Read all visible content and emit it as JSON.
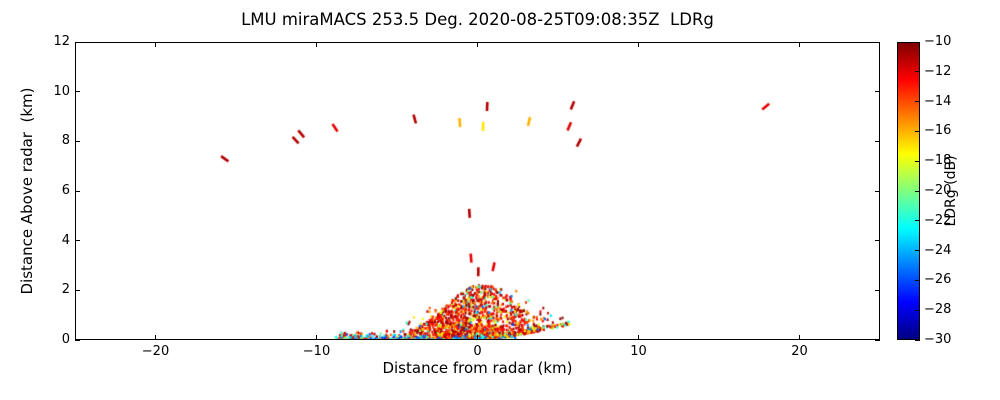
{
  "figure": {
    "background": "#ffffff",
    "axis_color": "#000000"
  },
  "chart_data": {
    "type": "scatter",
    "title": "LMU miraMACS 253.5 Deg. 2020-08-25T09:08:35Z  LDRg",
    "xlabel": "Distance from radar (km)",
    "ylabel": "Distance Above radar  (km)",
    "xlim": [
      -25,
      25
    ],
    "ylim": [
      0,
      12
    ],
    "xticks": [
      -20,
      -10,
      0,
      10,
      20
    ],
    "yticks": [
      0,
      2,
      4,
      6,
      8,
      10,
      12
    ],
    "grid": false,
    "seed": 20200825,
    "colorbar": {
      "label": "LDRg (dB)",
      "min": -30,
      "max": -10,
      "ticks": [
        -10,
        -12,
        -14,
        -16,
        -18,
        -20,
        -22,
        -24,
        -26,
        -28,
        -30
      ],
      "colormap": "jet"
    },
    "points": [
      {
        "x": -15.7,
        "y": 7.3,
        "v": -11
      },
      {
        "x": -11.3,
        "y": 8.05,
        "v": -11
      },
      {
        "x": -10.95,
        "y": 8.3,
        "v": -11
      },
      {
        "x": -8.85,
        "y": 8.55,
        "v": -12
      },
      {
        "x": -3.9,
        "y": 8.9,
        "v": -11
      },
      {
        "x": -1.1,
        "y": 8.75,
        "v": -16
      },
      {
        "x": 0.35,
        "y": 8.6,
        "v": -17
      },
      {
        "x": 0.6,
        "y": 9.4,
        "v": -11
      },
      {
        "x": 3.2,
        "y": 8.8,
        "v": -16
      },
      {
        "x": 5.9,
        "y": 9.45,
        "v": -11
      },
      {
        "x": 5.7,
        "y": 8.6,
        "v": -12
      },
      {
        "x": 6.3,
        "y": 7.95,
        "v": -11
      },
      {
        "x": 17.9,
        "y": 9.4,
        "v": -12
      },
      {
        "x": -0.5,
        "y": 5.1,
        "v": -11
      },
      {
        "x": -0.4,
        "y": 3.3,
        "v": -12
      },
      {
        "x": 0.05,
        "y": 2.75,
        "v": -11
      },
      {
        "x": 1.0,
        "y": 2.95,
        "v": -12
      }
    ],
    "clusters": [
      {
        "name": "boundary-layer-core",
        "count": 1600,
        "x_dist": "triangular",
        "x_center": -0.4,
        "x_halfwidth": 4.6,
        "env_top": 2.25,
        "env_center": 0.4,
        "env_sigma": 2.4,
        "env_min": 0.18,
        "y_pow": 2.1,
        "slope": 0.125,
        "slope_x0": 1.0,
        "point_size": [
          2,
          2.6
        ],
        "bands": [
          {
            "range": [
              -13.5,
              -10
            ],
            "weight": 0.66
          },
          {
            "range": [
              -16.5,
              -13.5
            ],
            "weight": 0.18
          },
          {
            "range": [
              -19.5,
              -16.5
            ],
            "weight": 0.1
          },
          {
            "range": [
              -26,
              -20
            ],
            "weight": 0.06
          }
        ]
      },
      {
        "name": "halo-sparse",
        "count": 380,
        "x_dist": "uniform",
        "x_min": -8.6,
        "x_max": 5.7,
        "env_top": 2.3,
        "env_center": 0.6,
        "env_sigma": 3.4,
        "env_min": 0.3,
        "y_pow": 2.4,
        "slope": 0.125,
        "slope_x0": 1.0,
        "point_size": [
          2,
          2.6
        ],
        "bands": [
          {
            "range": [
              -13.5,
              -10
            ],
            "weight": 0.5
          },
          {
            "range": [
              -18,
              -13.5
            ],
            "weight": 0.3
          },
          {
            "range": [
              -26,
              -19
            ],
            "weight": 0.2
          }
        ]
      },
      {
        "name": "surface-cyan-strip",
        "count": 110,
        "x_dist": "uniform",
        "x_min": -8.8,
        "x_max": 2.5,
        "env_top": 0.16,
        "env_center": 0.0,
        "env_sigma": 50,
        "env_min": 0.1,
        "y_pow": 1.0,
        "slope": 0,
        "slope_x0": 0,
        "point_size": [
          2.2,
          2.2
        ],
        "bands": [
          {
            "range": [
              -27,
              -21
            ],
            "weight": 0.75
          },
          {
            "range": [
              -19,
              -15
            ],
            "weight": 0.15
          },
          {
            "range": [
              -13,
              -10
            ],
            "weight": 0.1
          }
        ]
      }
    ]
  }
}
